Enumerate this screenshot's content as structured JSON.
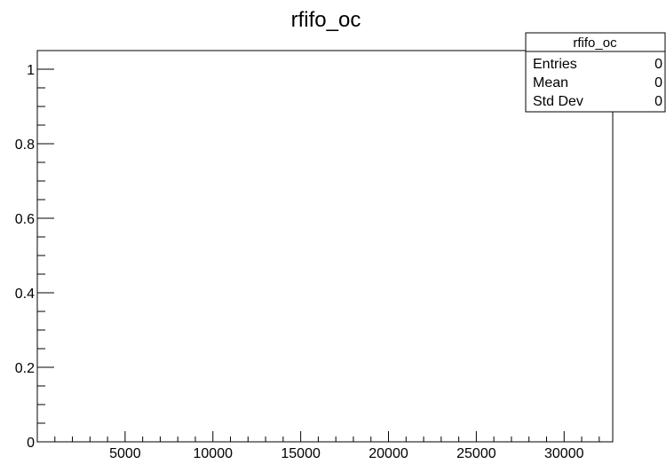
{
  "chart_data": {
    "type": "bar",
    "title": "rfifo_oc",
    "xlabel": "",
    "ylabel": "",
    "xlim": [
      0,
      32768
    ],
    "ylim": [
      0,
      1.05
    ],
    "x_ticks": [
      {
        "value": 5000,
        "label": "5000"
      },
      {
        "value": 10000,
        "label": "10000"
      },
      {
        "value": 15000,
        "label": "15000"
      },
      {
        "value": 20000,
        "label": "20000"
      },
      {
        "value": 25000,
        "label": "25000"
      },
      {
        "value": 30000,
        "label": "30000"
      }
    ],
    "y_ticks": [
      {
        "value": 0,
        "label": "0"
      },
      {
        "value": 0.2,
        "label": "0.2"
      },
      {
        "value": 0.4,
        "label": "0.4"
      },
      {
        "value": 0.6,
        "label": "0.6"
      },
      {
        "value": 0.8,
        "label": "0.8"
      },
      {
        "value": 1,
        "label": "1"
      }
    ],
    "x_minor_step": 1000,
    "y_minor_step": 0.05,
    "values": [],
    "grid": false,
    "stats_box": {
      "title": "rfifo_oc",
      "rows": [
        {
          "label": "Entries",
          "value": "0"
        },
        {
          "label": "Mean",
          "value": "0"
        },
        {
          "label": "Std Dev",
          "value": "0"
        }
      ]
    }
  }
}
